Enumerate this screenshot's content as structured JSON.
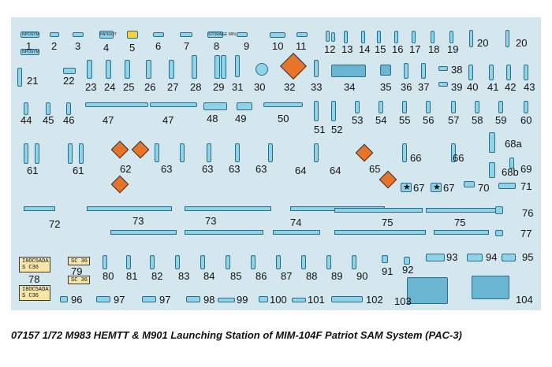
{
  "sheet": {
    "title": "07157 1/72 M983 HEMTT & M901 Launching Station of MIM-104F Patriot SAM System (PAC-3)"
  },
  "stencils": {
    "s1a": "NPOSYM",
    "s1b": "NPOSYM",
    "s4": "PATRIOT",
    "s8": "STORAGE MIN"
  },
  "plates": {
    "p78a": "I8OC5ADA\nS C36",
    "p78b": "I8OC5ADA\nS C36",
    "p79a": "SC 36",
    "p79b": "SC 36"
  },
  "labels": {
    "n1": "1",
    "n2": "2",
    "n3": "3",
    "n4": "4",
    "n5": "5",
    "n6": "6",
    "n7": "7",
    "n8": "8",
    "n9": "9",
    "n10": "10",
    "n11": "11",
    "n12": "12",
    "n13": "13",
    "n14": "14",
    "n15": "15",
    "n16": "16",
    "n17": "17",
    "n18": "18",
    "n19": "19",
    "n20a": "20",
    "n20b": "20",
    "n21": "21",
    "n22": "22",
    "n23": "23",
    "n24": "24",
    "n25": "25",
    "n26": "26",
    "n27": "27",
    "n28": "28",
    "n29": "29",
    "n30": "30",
    "n31": "31",
    "n32": "32",
    "n33": "33",
    "n34": "34",
    "n35": "35",
    "n36": "36",
    "n37": "37",
    "n38": "38",
    "n39": "39",
    "n40": "40",
    "n41": "41",
    "n42": "42",
    "n43": "43",
    "n44": "44",
    "n45": "45",
    "n46": "46",
    "n47a": "47",
    "n47b": "47",
    "n48": "48",
    "n49": "49",
    "n50": "50",
    "n51": "51",
    "n52": "52",
    "n53": "53",
    "n54": "54",
    "n55": "55",
    "n56": "56",
    "n57": "57",
    "n58": "58",
    "n59": "59",
    "n60": "60",
    "n61a": "61",
    "n61b": "61",
    "n62": "62",
    "n63a": "63",
    "n63b": "63",
    "n63c": "63",
    "n63d": "63",
    "n64a": "64",
    "n64b": "64",
    "n65": "65",
    "n66a": "66",
    "n66b": "66",
    "n67a": "67",
    "n67b": "67",
    "n68a": "68a",
    "n68b": "68b",
    "n69": "69",
    "n70": "70",
    "n71": "71",
    "n72": "72",
    "n73a": "73",
    "n73b": "73",
    "n74": "74",
    "n75a": "75",
    "n75b": "75",
    "n76": "76",
    "n77": "77",
    "n78": "78",
    "n79": "79",
    "n80": "80",
    "n81": "81",
    "n82": "82",
    "n83": "83",
    "n84": "84",
    "n85": "85",
    "n86": "86",
    "n87": "87",
    "n88": "88",
    "n89": "89",
    "n90": "90",
    "n91": "91",
    "n92": "92",
    "n93": "93",
    "n94": "94",
    "n95": "95",
    "n96": "96",
    "n97a": "97",
    "n97b": "97",
    "n98": "98",
    "n99": "99",
    "n100": "100",
    "n101": "101",
    "n102": "102",
    "n103": "103",
    "n104": "104"
  }
}
